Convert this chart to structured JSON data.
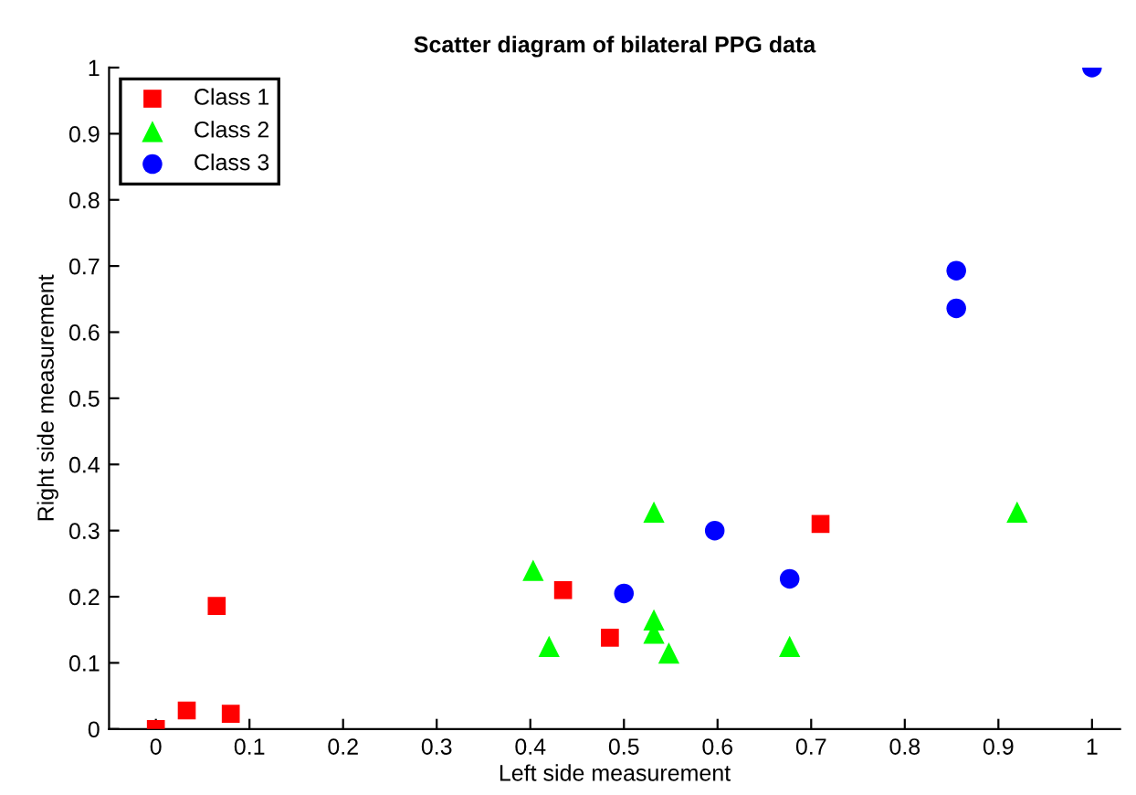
{
  "chart_data": {
    "type": "scatter",
    "title": "Scatter diagram of bilateral PPG data",
    "xlabel": "Left side measurement",
    "ylabel": "Right side measurement",
    "xlim": [
      -0.05,
      1.03
    ],
    "ylim": [
      0,
      1
    ],
    "xticks": [
      0,
      0.1,
      0.2,
      0.3,
      0.4,
      0.5,
      0.6,
      0.7,
      0.8,
      0.9,
      1
    ],
    "yticks": [
      0,
      0.1,
      0.2,
      0.3,
      0.4,
      0.5,
      0.6,
      0.7,
      0.8,
      0.9,
      1
    ],
    "grid": false,
    "legend": "top left",
    "series": [
      {
        "name": "Class 1",
        "color": "#ff0000",
        "marker": "square",
        "x": [
          0,
          0.033,
          0.065,
          0.08,
          0.435,
          0.485,
          0.71
        ],
        "values": [
          0,
          0.028,
          0.186,
          0.023,
          0.21,
          0.138,
          0.31
        ]
      },
      {
        "name": "Class 2",
        "color": "#00ff00",
        "marker": "triangle",
        "x": [
          0.403,
          0.42,
          0.532,
          0.532,
          0.532,
          0.548,
          0.677,
          0.92
        ],
        "values": [
          0.24,
          0.125,
          0.328,
          0.165,
          0.145,
          0.115,
          0.125,
          0.328
        ]
      },
      {
        "name": "Class 3",
        "color": "#0000ff",
        "marker": "circle",
        "x": [
          0.5,
          0.597,
          0.677,
          0.855,
          0.855,
          1
        ],
        "values": [
          0.205,
          0.3,
          0.227,
          0.693,
          0.636,
          1
        ]
      }
    ]
  }
}
